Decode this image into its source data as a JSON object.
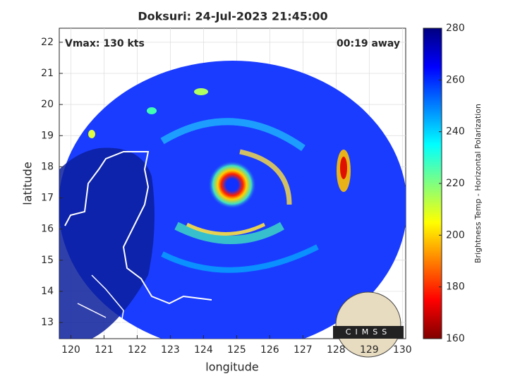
{
  "chart_data": {
    "type": "image",
    "title": "Doksuri: 24-Jul-2023 21:45:00",
    "annotations": [
      "Vmax: 130 kts",
      "00:19 away"
    ],
    "x_label": "longitude",
    "y_label": "latitude",
    "xlim": [
      119.65,
      130.1
    ],
    "xticks": [
      120,
      121,
      122,
      123,
      124,
      125,
      126,
      127,
      128,
      129,
      130
    ],
    "ylim": [
      12.48,
      22.45
    ],
    "yticks": [
      13,
      14,
      15,
      16,
      17,
      18,
      19,
      20,
      21,
      22
    ],
    "grid": true,
    "colorbar": {
      "label": "Brightness Temp - Horizontal Polarization",
      "lim": [
        160,
        280
      ],
      "ticks": [
        160,
        180,
        200,
        220,
        240,
        260,
        280
      ],
      "colormap": [
        "#800000",
        "#ff0000",
        "#ff8000",
        "#ffff00",
        "#80ff80",
        "#00ffff",
        "#0080ff",
        "#0000ff",
        "#000080"
      ]
    },
    "logo_text": "CIMSS"
  }
}
